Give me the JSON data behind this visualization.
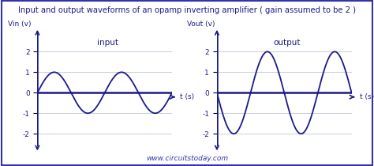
{
  "title": "Input and output waveforms of an opamp inverting amplifier ( gain assumed to be 2 )",
  "title_fontsize": 7.2,
  "title_color": "#1a1a8c",
  "background_color": "#ffffff",
  "border_color": "#3333aa",
  "plot_bg_color": "#ffffff",
  "line_color": "#1a1a8c",
  "axis_color": "#1a1a8c",
  "grid_color": "#c0c8d8",
  "left_ylabel": "Vin (v)",
  "left_xlabel": "t (s)",
  "left_label": "input",
  "right_ylabel": "Vout (v)",
  "right_xlabel": "t (s)",
  "right_label": "output",
  "watermark": "www.circuitstoday.com",
  "watermark_color": "#3333aa",
  "input_amplitude": 1,
  "output_amplitude": 2,
  "frequency": 2,
  "yticks": [
    -2,
    -1,
    0,
    1,
    2
  ],
  "ylim": [
    -2.6,
    2.9
  ],
  "label_fontsize": 6.5,
  "tick_fontsize": 6.5,
  "watermark_fontsize": 6.5
}
